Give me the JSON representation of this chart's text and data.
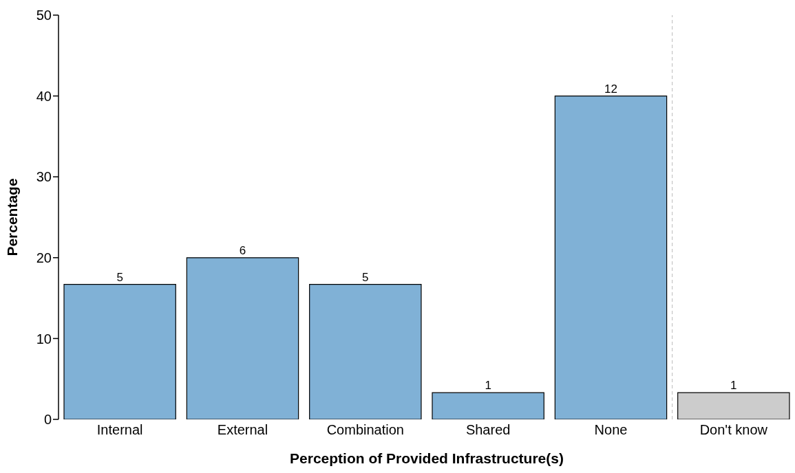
{
  "chart_data": {
    "type": "bar",
    "xlabel": "Perception of Provided Infrastructure(s)",
    "ylabel": "Percentage",
    "categories": [
      "Internal",
      "External",
      "Combination",
      "Shared",
      "None",
      "Don't know"
    ],
    "values": [
      16.7,
      20,
      16.7,
      3.3,
      40,
      3.3
    ],
    "colors": [
      "#80b1d6",
      "#80b1d6",
      "#80b1d6",
      "#80b1d6",
      "#80b1d6",
      "#cccccc"
    ],
    "annotations": [
      {
        "text": "5",
        "x": "Internal",
        "y": 16.7
      },
      {
        "text": "6",
        "x": "External",
        "y": 20
      },
      {
        "text": "5",
        "x": "Combination",
        "y": 16.7
      },
      {
        "text": "1",
        "x": "Shared",
        "y": 3.3
      },
      {
        "text": "12",
        "x": "None",
        "y": 40
      },
      {
        "text": "1",
        "x": "Don't know",
        "y": 3.3
      }
    ],
    "ylim": [
      0,
      50
    ],
    "yticks": [
      0,
      10,
      20,
      30,
      40,
      50
    ],
    "grid": false,
    "legend": false
  }
}
